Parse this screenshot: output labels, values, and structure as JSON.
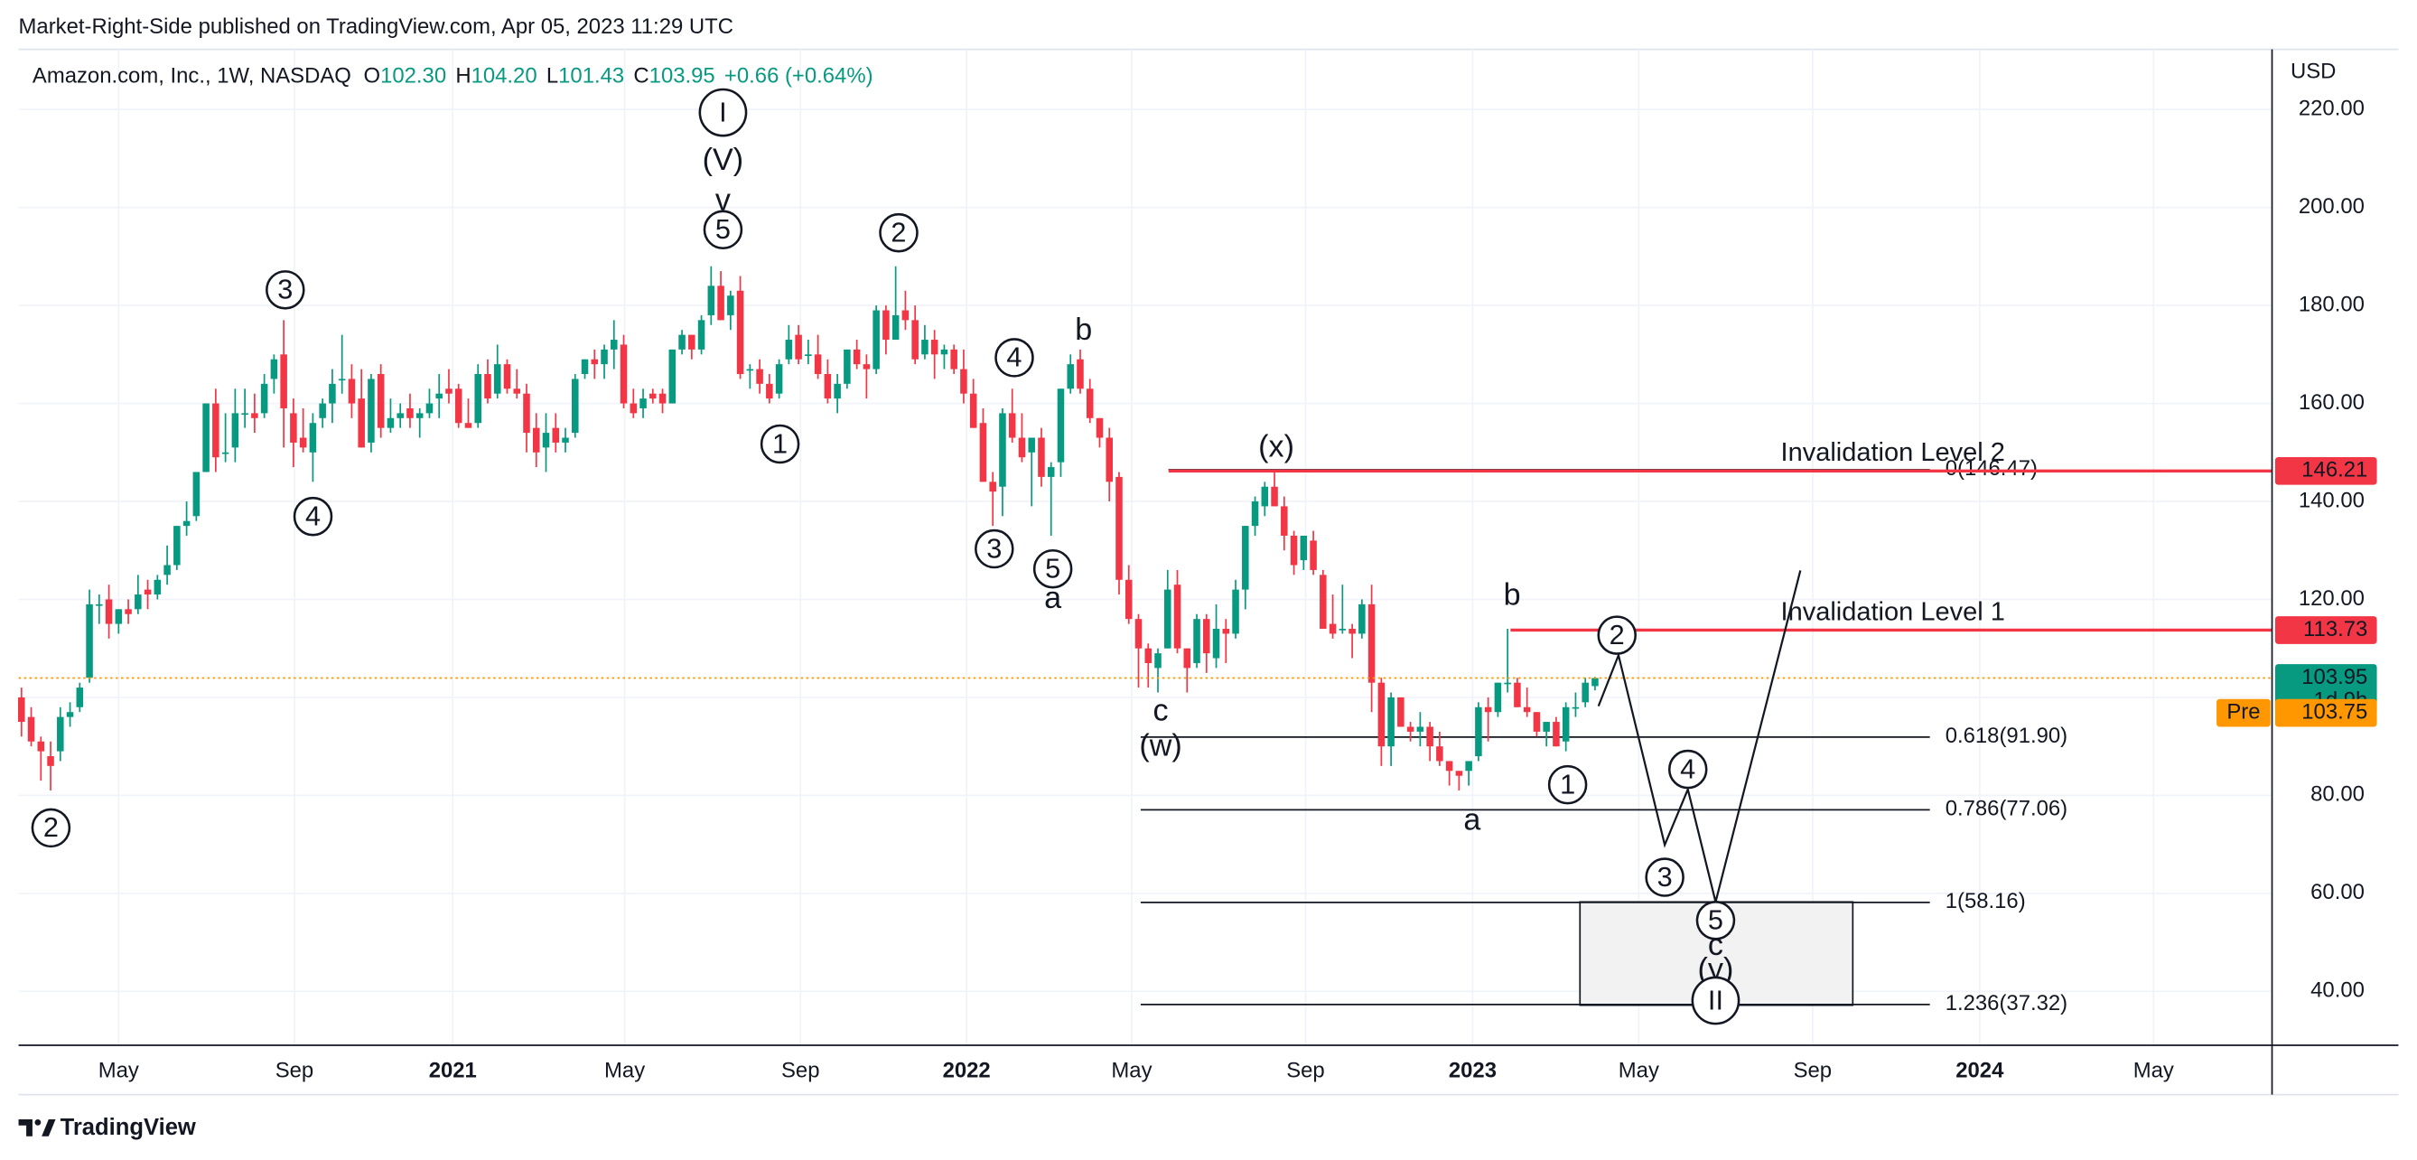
{
  "header": {
    "publisher": "Market-Right-Side published on TradingView.com, Apr 05, 2023 11:29 UTC",
    "footer": "TradingView"
  },
  "chart_data": {
    "type": "candlestick",
    "symbol": "Amazon.com, Inc., 1W, NASDAQ",
    "legend": [
      {
        "key": "O",
        "value": "102.30"
      },
      {
        "key": "H",
        "value": "104.20"
      },
      {
        "key": "L",
        "value": "101.43"
      },
      {
        "key": "C",
        "value": "103.95"
      }
    ],
    "change": "+0.66 (+0.64%)",
    "currency": "USD",
    "up_color": "#089981",
    "down_color": "#f23645",
    "ohlc": [
      [
        100,
        102,
        92,
        95
      ],
      [
        96,
        98,
        90,
        91
      ],
      [
        91,
        92,
        83,
        89
      ],
      [
        88,
        91,
        81,
        86
      ],
      [
        89,
        98,
        87,
        96
      ],
      [
        96,
        99,
        94,
        97
      ],
      [
        98,
        103,
        97,
        102
      ],
      [
        104,
        122,
        103,
        119
      ],
      [
        119,
        121,
        115,
        119
      ],
      [
        120,
        123,
        112,
        115
      ],
      [
        115,
        118,
        113,
        118
      ],
      [
        118,
        120,
        115,
        117
      ],
      [
        118,
        125,
        117,
        121
      ],
      [
        122,
        124,
        118,
        121
      ],
      [
        121,
        125,
        120,
        124
      ],
      [
        125,
        131,
        123,
        127
      ],
      [
        127,
        135,
        126,
        135
      ],
      [
        135,
        140,
        133,
        136
      ],
      [
        137,
        146,
        136,
        146
      ],
      [
        146,
        160,
        146,
        160
      ],
      [
        160,
        163,
        146,
        149
      ],
      [
        150,
        158,
        148,
        150
      ],
      [
        151,
        163,
        148,
        158
      ],
      [
        158,
        163,
        155,
        158
      ],
      [
        158,
        162,
        154,
        157
      ],
      [
        158,
        166,
        157,
        164
      ],
      [
        165,
        170,
        162,
        169
      ],
      [
        170,
        177,
        151,
        159
      ],
      [
        158,
        161,
        147,
        152
      ],
      [
        153,
        159,
        150,
        151
      ],
      [
        150,
        158,
        144,
        156
      ],
      [
        157,
        161,
        155,
        160
      ],
      [
        160,
        167,
        156,
        164
      ],
      [
        165,
        174,
        162,
        165
      ],
      [
        165,
        168,
        157,
        160
      ],
      [
        161,
        167,
        151,
        151
      ],
      [
        152,
        166,
        150,
        165
      ],
      [
        166,
        168,
        153,
        155
      ],
      [
        155,
        161,
        154,
        157
      ],
      [
        157,
        160,
        155,
        158
      ],
      [
        159,
        162,
        155,
        157
      ],
      [
        157,
        159,
        153,
        158
      ],
      [
        158,
        163,
        157,
        160
      ],
      [
        161,
        166,
        157,
        162
      ],
      [
        163,
        167,
        160,
        162
      ],
      [
        163,
        164,
        155,
        156
      ],
      [
        156,
        161,
        155,
        155
      ],
      [
        156,
        168,
        155,
        166
      ],
      [
        166,
        169,
        160,
        161
      ],
      [
        162,
        172,
        161,
        168
      ],
      [
        168,
        169,
        162,
        163
      ],
      [
        163,
        167,
        161,
        162
      ],
      [
        162,
        164,
        150,
        154
      ],
      [
        155,
        158,
        147,
        150
      ],
      [
        151,
        158,
        146,
        154
      ],
      [
        155,
        158,
        150,
        152
      ],
      [
        152,
        155,
        150,
        153
      ],
      [
        154,
        166,
        153,
        165
      ],
      [
        166,
        169,
        165,
        169
      ],
      [
        169,
        171,
        165,
        168
      ],
      [
        168,
        172,
        165,
        171
      ],
      [
        171,
        177,
        167,
        173
      ],
      [
        172,
        174,
        159,
        160
      ],
      [
        160,
        163,
        157,
        158
      ],
      [
        159,
        163,
        157,
        161
      ],
      [
        162,
        163,
        160,
        161
      ],
      [
        162,
        163,
        158,
        160
      ],
      [
        160,
        171,
        160,
        171
      ],
      [
        171,
        175,
        170,
        174
      ],
      [
        174,
        174,
        169,
        171
      ],
      [
        171,
        178,
        170,
        177
      ],
      [
        178,
        188,
        176,
        184
      ],
      [
        184,
        187,
        177,
        177
      ],
      [
        178,
        183,
        175,
        182
      ],
      [
        183,
        186,
        165,
        166
      ],
      [
        167,
        168,
        163,
        167
      ],
      [
        167,
        169,
        162,
        164
      ],
      [
        164,
        166,
        160,
        161
      ],
      [
        162,
        169,
        161,
        168
      ],
      [
        169,
        176,
        168,
        173
      ],
      [
        174,
        176,
        168,
        169
      ],
      [
        170,
        173,
        168,
        170
      ],
      [
        170,
        174,
        165,
        166
      ],
      [
        166,
        169,
        160,
        161
      ],
      [
        161,
        166,
        158,
        164
      ],
      [
        164,
        171,
        163,
        171
      ],
      [
        171,
        173,
        167,
        168
      ],
      [
        168,
        170,
        161,
        167
      ],
      [
        167,
        180,
        166,
        179
      ],
      [
        179,
        180,
        170,
        173
      ],
      [
        173,
        188,
        173,
        178
      ],
      [
        179,
        183,
        175,
        177
      ],
      [
        177,
        180,
        168,
        169
      ],
      [
        170,
        176,
        169,
        173
      ],
      [
        173,
        175,
        165,
        170
      ],
      [
        170,
        172,
        167,
        171
      ],
      [
        171,
        172,
        166,
        167
      ],
      [
        167,
        171,
        160,
        162
      ],
      [
        162,
        165,
        155,
        155
      ],
      [
        156,
        159,
        144,
        144
      ],
      [
        144,
        146,
        135,
        142
      ],
      [
        143,
        159,
        137,
        158
      ],
      [
        158,
        163,
        152,
        153
      ],
      [
        153,
        158,
        148,
        149
      ],
      [
        150,
        153,
        139,
        153
      ],
      [
        153,
        155,
        143,
        145
      ],
      [
        145,
        148,
        133,
        147
      ],
      [
        148,
        163,
        145,
        163
      ],
      [
        163,
        170,
        162,
        168
      ],
      [
        169,
        171,
        162,
        163
      ],
      [
        163,
        165,
        156,
        157
      ],
      [
        157,
        157,
        151,
        153
      ],
      [
        153,
        155,
        140,
        144
      ],
      [
        145,
        146,
        121,
        124
      ],
      [
        124,
        127,
        115,
        116
      ],
      [
        116,
        117,
        102,
        110
      ],
      [
        110,
        111,
        102,
        107
      ],
      [
        106,
        110,
        101,
        109
      ],
      [
        110,
        126,
        110,
        122
      ],
      [
        123,
        126,
        109,
        110
      ],
      [
        110,
        110,
        101,
        106
      ],
      [
        107,
        117,
        106,
        116
      ],
      [
        116,
        117,
        105,
        109
      ],
      [
        108,
        119,
        106,
        114
      ],
      [
        114,
        116,
        107,
        113
      ],
      [
        113,
        124,
        112,
        122
      ],
      [
        122,
        135,
        118,
        135
      ],
      [
        135,
        141,
        133,
        140
      ],
      [
        139,
        144,
        137,
        143
      ],
      [
        143,
        146,
        139,
        139
      ],
      [
        139,
        141,
        130,
        133
      ],
      [
        133,
        134,
        125,
        127
      ],
      [
        128,
        133,
        126,
        133
      ],
      [
        132,
        134,
        125,
        126
      ],
      [
        125,
        126,
        114,
        114
      ],
      [
        115,
        121,
        112,
        113
      ],
      [
        114,
        123,
        113,
        114
      ],
      [
        114,
        115,
        108,
        113
      ],
      [
        113,
        120,
        112,
        119
      ],
      [
        119,
        123,
        97,
        103
      ],
      [
        103,
        104,
        86,
        90
      ],
      [
        90,
        101,
        86,
        100
      ],
      [
        100,
        100,
        94,
        94
      ],
      [
        94,
        95,
        91,
        93
      ],
      [
        93,
        97,
        90,
        94
      ],
      [
        94,
        95,
        87,
        90
      ],
      [
        90,
        93,
        86,
        87
      ],
      [
        87,
        87,
        82,
        85
      ],
      [
        85,
        85,
        81,
        84
      ],
      [
        85,
        87,
        82,
        87
      ],
      [
        88,
        99,
        87,
        98
      ],
      [
        98,
        100,
        91,
        97
      ],
      [
        97,
        103,
        96,
        103
      ],
      [
        103,
        114,
        101,
        103
      ],
      [
        103,
        104,
        98,
        98
      ],
      [
        98,
        102,
        96,
        97
      ],
      [
        97,
        97,
        92,
        93
      ],
      [
        93,
        95,
        90,
        95
      ],
      [
        95,
        96,
        90,
        90
      ],
      [
        91,
        99,
        89,
        98
      ],
      [
        98,
        101,
        96,
        98
      ],
      [
        99,
        104,
        98,
        103
      ],
      [
        102.3,
        104.2,
        101.43,
        103.95
      ]
    ],
    "xlim": [
      -0.3,
      231.7
    ],
    "xticks": [
      {
        "value": 10,
        "label": "May"
      },
      {
        "value": 28.1,
        "label": "Sep"
      },
      {
        "value": 44.4,
        "label": "2021"
      },
      {
        "value": 62.1,
        "label": "May"
      },
      {
        "value": 80.2,
        "label": "Sep"
      },
      {
        "value": 97.3,
        "label": "2022"
      },
      {
        "value": 114.3,
        "label": "May"
      },
      {
        "value": 132.2,
        "label": "Sep"
      },
      {
        "value": 149.4,
        "label": "2023"
      },
      {
        "value": 166.5,
        "label": "May"
      },
      {
        "value": 184.4,
        "label": "Sep"
      },
      {
        "value": 201.6,
        "label": "2024"
      },
      {
        "value": 219.5,
        "label": "May"
      }
    ],
    "ylim": [
      28.99,
      232.27
    ],
    "yticks": [
      {
        "value": 40,
        "label": "40.00"
      },
      {
        "value": 60,
        "label": "60.00"
      },
      {
        "value": 80,
        "label": "80.00"
      },
      {
        "value": 100,
        "label": "100.00"
      },
      {
        "value": 120,
        "label": "120.00"
      },
      {
        "value": 140,
        "label": "140.00"
      },
      {
        "value": 160,
        "label": "160.00"
      },
      {
        "value": 180,
        "label": "180.00"
      },
      {
        "value": 200,
        "label": "200.00"
      },
      {
        "value": 220,
        "label": "220.00"
      }
    ],
    "grid": true,
    "last_price": {
      "value": 103.95,
      "countdown": "1d 9h",
      "color": "#089981"
    },
    "premarket": {
      "label": "Pre",
      "value": 103.75,
      "color": "#ff9800"
    },
    "levels": [
      {
        "name": "Invalidation Level 2",
        "value": 146.21,
        "color": "#f23645"
      },
      {
        "name": "Invalidation Level 1",
        "value": 113.73,
        "color": "#f23645"
      }
    ],
    "fib": [
      {
        "value": 146.47,
        "label": "0(146.47)"
      },
      {
        "value": 91.9,
        "label": "0.618(91.90)"
      },
      {
        "value": 77.06,
        "label": "0.786(77.06)"
      },
      {
        "value": 58.16,
        "label": "1(58.16)"
      },
      {
        "value": 37.32,
        "label": "1.236(37.32)"
      }
    ],
    "annotations": [
      {
        "text": "2",
        "circled": true,
        "color": "#131722"
      },
      {
        "text": "3",
        "circled": true,
        "color": "#131722"
      },
      {
        "text": "4",
        "circled": true,
        "color": "#131722"
      },
      {
        "text": "I",
        "circled": true,
        "color": "#131722"
      },
      {
        "text": "(V)",
        "circled": false,
        "color": "#2962ff"
      },
      {
        "text": "v",
        "circled": false,
        "color": "#f23645"
      },
      {
        "text": "5",
        "circled": true,
        "color": "#131722"
      },
      {
        "text": "2",
        "circled": true,
        "color": "#131722"
      },
      {
        "text": "1",
        "circled": true,
        "color": "#131722"
      },
      {
        "text": "4",
        "circled": true,
        "color": "#131722"
      },
      {
        "text": "b",
        "circled": false,
        "color": "#f23645"
      },
      {
        "text": "3",
        "circled": true,
        "color": "#131722"
      },
      {
        "text": "5",
        "circled": true,
        "color": "#131722"
      },
      {
        "text": "a",
        "circled": false,
        "color": "#f23645"
      },
      {
        "text": "(x)",
        "circled": false,
        "color": "#2962ff"
      },
      {
        "text": "c",
        "circled": false,
        "color": "#f23645"
      },
      {
        "text": "(w)",
        "circled": false,
        "color": "#2962ff"
      },
      {
        "text": "b",
        "circled": false,
        "color": "#f23645"
      },
      {
        "text": "a",
        "circled": false,
        "color": "#f23645"
      },
      {
        "text": "1",
        "circled": true,
        "color": "#131722"
      },
      {
        "text": "2",
        "circled": true,
        "color": "#131722"
      },
      {
        "text": "4",
        "circled": true,
        "color": "#131722"
      },
      {
        "text": "3",
        "circled": true,
        "color": "#131722"
      },
      {
        "text": "5",
        "circled": true,
        "color": "#131722"
      },
      {
        "text": "c",
        "circled": false,
        "color": "#f23645"
      },
      {
        "text": "(y)",
        "circled": false,
        "color": "#2962ff"
      },
      {
        "text": "II",
        "circled": true,
        "color": "#131722"
      }
    ]
  }
}
